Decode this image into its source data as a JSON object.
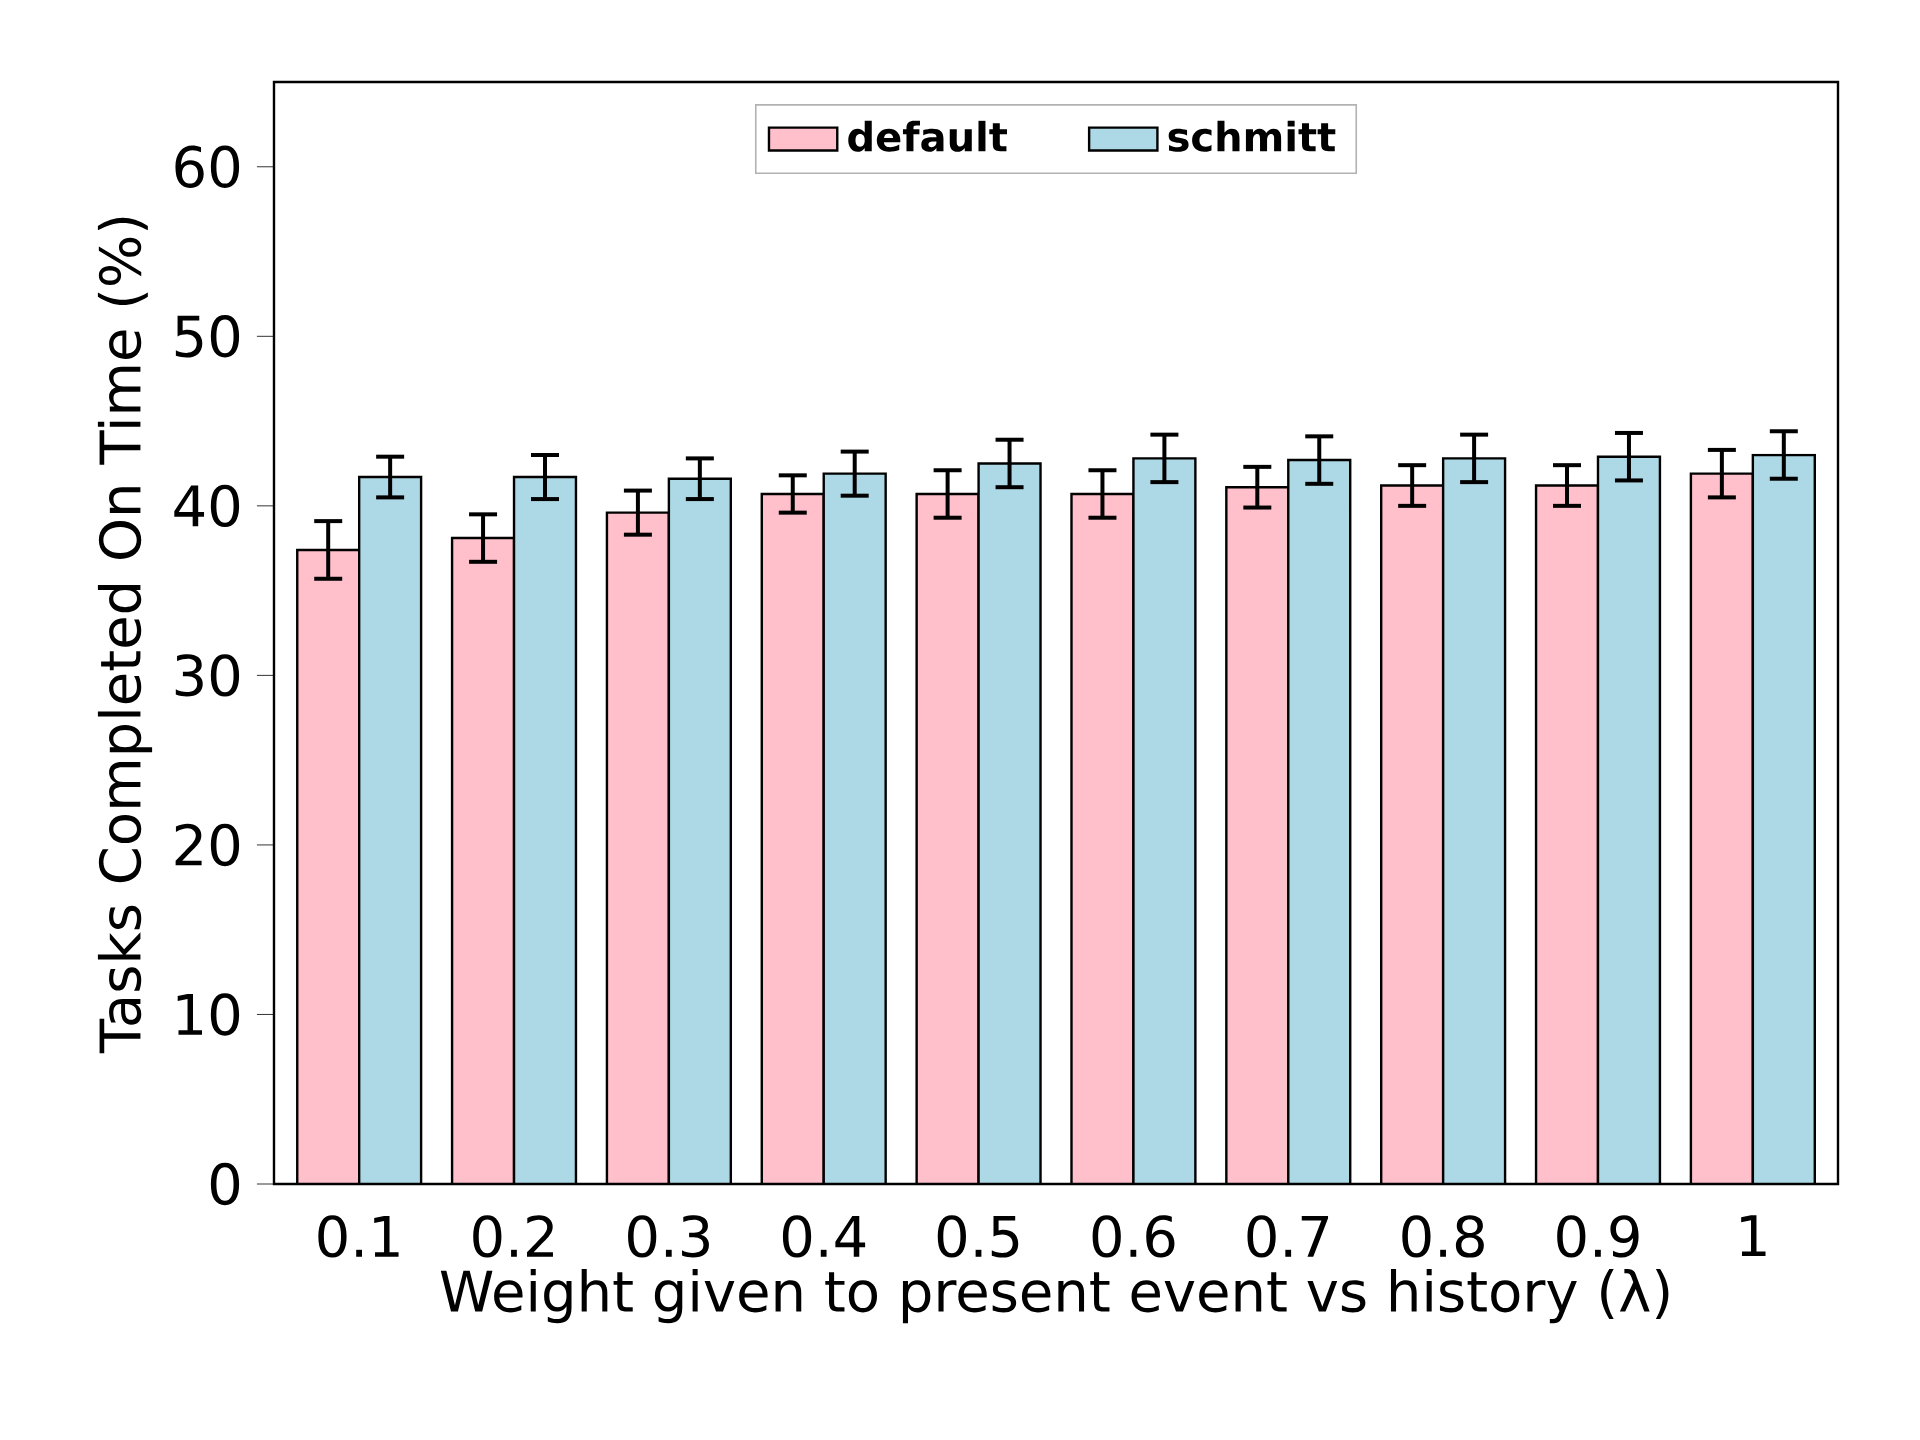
{
  "chart_data": {
    "type": "bar",
    "xlabel": "Weight given to present event vs history (λ)",
    "ylabel": "Tasks Completed On Time (%)",
    "categories": [
      "0.1",
      "0.2",
      "0.3",
      "0.4",
      "0.5",
      "0.6",
      "0.7",
      "0.8",
      "0.9",
      "1"
    ],
    "series": [
      {
        "name": "default",
        "color": "#ffc0cb",
        "values": [
          37.4,
          38.1,
          39.6,
          40.7,
          40.7,
          40.7,
          41.1,
          41.2,
          41.2,
          41.9
        ],
        "errors": [
          1.7,
          1.4,
          1.3,
          1.1,
          1.4,
          1.4,
          1.2,
          1.2,
          1.2,
          1.4
        ]
      },
      {
        "name": "schmitt",
        "color": "#add8e6",
        "values": [
          41.7,
          41.7,
          41.6,
          41.9,
          42.5,
          42.8,
          42.7,
          42.8,
          42.9,
          43.0
        ],
        "errors": [
          1.2,
          1.3,
          1.2,
          1.3,
          1.4,
          1.4,
          1.4,
          1.4,
          1.4,
          1.4
        ]
      }
    ],
    "ylim": [
      0,
      65
    ],
    "yticks": [
      0,
      10,
      20,
      30,
      40,
      50,
      60
    ],
    "legend": "top",
    "grid": false
  }
}
